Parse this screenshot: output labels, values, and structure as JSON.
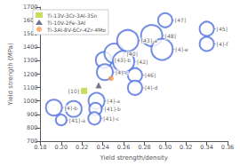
{
  "chart_data": {
    "type": "scatter",
    "xlabel": "Yield strength/density",
    "ylabel": "Yield strength (MPa)",
    "xlim": [
      0.18,
      0.36
    ],
    "ylim": [
      700,
      1700
    ],
    "xticks": [
      0.18,
      {
        "value": 0.2,
        "label": "0.20"
      },
      0.22,
      0.24,
      0.26,
      0.28,
      {
        "value": 0.3,
        "label": "0.30"
      },
      0.32,
      0.34,
      0.36
    ],
    "yticks": [
      700,
      800,
      900,
      1000,
      1100,
      1200,
      1300,
      1400,
      1500,
      1600,
      1700
    ],
    "grid": false,
    "legend": "upper left",
    "series": [
      {
        "marker": "ring",
        "x": [
          0.193,
          0.2,
          0.212,
          0.234,
          0.233,
          0.232,
          0.241,
          0.242,
          0.251,
          0.26,
          0.264,
          0.271,
          0.271,
          0.287,
          0.297,
          0.3,
          0.34,
          0.34
        ],
        "values": [
          950,
          858,
          940,
          1000,
          940,
          870,
          1305,
          1215,
          1355,
          1295,
          1450,
          1192,
          1098,
          1488,
          1385,
          1602,
          1538,
          1425
        ],
        "sizes": [
          9,
          6,
          9,
          9,
          7,
          7,
          9,
          9,
          11,
          12,
          12,
          8,
          8,
          12,
          12,
          8,
          8,
          8
        ],
        "labels": [
          "[4]-b",
          "[41]-a",
          null,
          "[4]-a",
          "[41]-b",
          "[41]-c",
          "[43]-b",
          "[4]-c",
          "[40]",
          "[42]",
          "[43]-a",
          "[46]",
          "[4]-d",
          "[48]",
          "[4]-e",
          "[47]",
          "[45]",
          "[4]-f"
        ]
      },
      {
        "name": "Ti-13V-3Cr-3Al-3Sn",
        "marker": "square",
        "x": [
          0.222
        ],
        "values": [
          1075
        ],
        "labels": [
          "[10]"
        ]
      },
      {
        "name": "Ti-10V-2Fe-3Al",
        "marker": "triangle",
        "x": [
          0.236
        ],
        "values": [
          1118
        ]
      },
      {
        "name": "Ti-3Al-8V-6Cr-4Zr-4Mo",
        "marker": "circle",
        "x": [
          0.248
        ],
        "values": [
          1168
        ]
      }
    ]
  }
}
